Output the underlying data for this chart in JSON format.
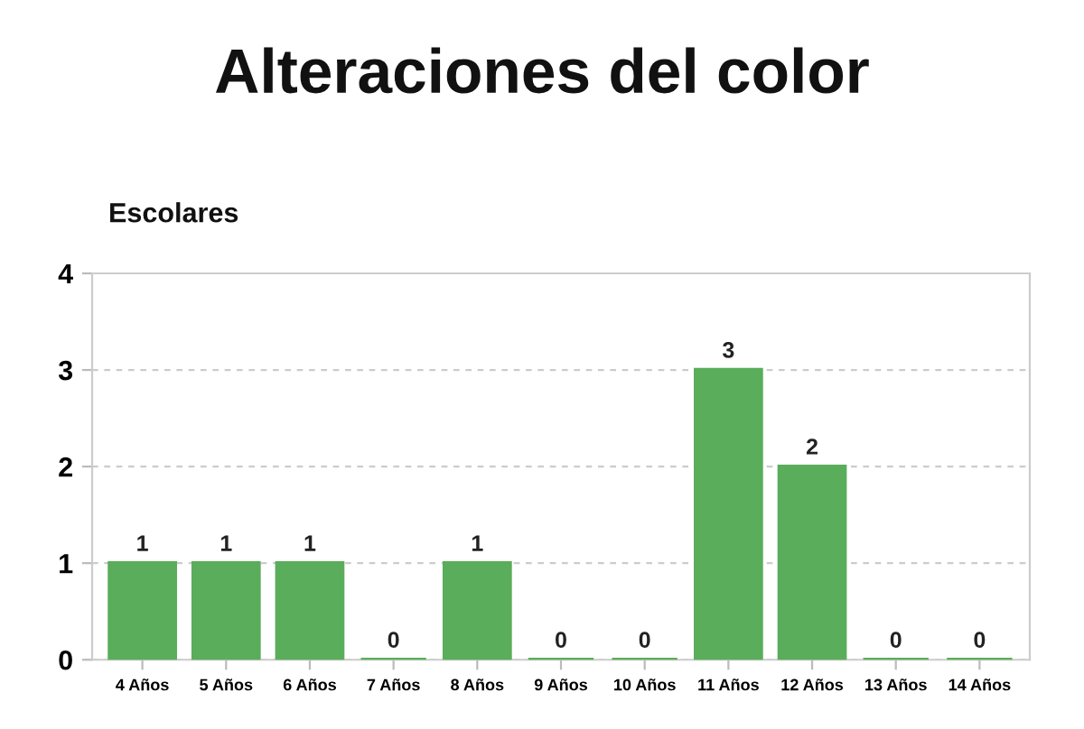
{
  "chart_data": {
    "type": "bar",
    "title": "Alteraciones del color",
    "subtitle": "Escolares",
    "categories": [
      "4 Años",
      "5 Años",
      "6 Años",
      "7 Años",
      "8 Años",
      "9 Años",
      "10 Años",
      "11 Años",
      "12 Años",
      "13 Años",
      "14 Años"
    ],
    "values": [
      1,
      1,
      1,
      0,
      1,
      0,
      0,
      3,
      2,
      0,
      0
    ],
    "color": "#5aad5a",
    "ylim": [
      0,
      4
    ],
    "yticks": [
      0,
      1,
      2,
      3,
      4
    ],
    "grid": "y",
    "data_labels": true
  }
}
